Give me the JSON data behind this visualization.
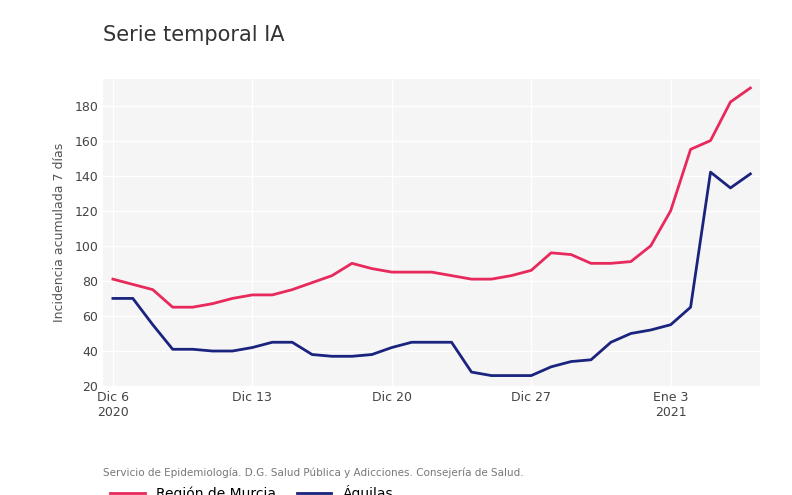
{
  "title": "Serie temporal IA",
  "ylabel": "Incidencia acumulada 7 días",
  "footnote": "Servicio de Epidemiología. D.G. Salud Pública y Adicciones. Consejería de Salud.",
  "ylim": [
    20,
    195
  ],
  "yticks": [
    20,
    40,
    60,
    80,
    100,
    120,
    140,
    160,
    180
  ],
  "xtick_labels": [
    "Dic 6\n2020",
    "Dic 13",
    "Dic 20",
    "Dic 27",
    "Ene 3\n2021"
  ],
  "xtick_positions": [
    0,
    7,
    14,
    21,
    28
  ],
  "murcia_color": "#E8295B",
  "aguilas_color": "#1A237E",
  "bg_plot": "#F5F5F5",
  "bg_outer": "#FFFFFF",
  "grid_color": "#FFFFFF",
  "legend_label_murcia": "Región de Murcia",
  "legend_label_aguilas": "Águilas",
  "title_fontsize": 15,
  "label_fontsize": 9,
  "tick_fontsize": 9,
  "legend_fontsize": 10,
  "footnote_fontsize": 7.5,
  "murcia_values": [
    81,
    78,
    75,
    65,
    65,
    67,
    70,
    72,
    72,
    75,
    79,
    83,
    90,
    87,
    85,
    85,
    85,
    83,
    81,
    81,
    83,
    86,
    96,
    95,
    90,
    90,
    91,
    100,
    120,
    155,
    160,
    182,
    190
  ],
  "aguilas_values": [
    70,
    70,
    55,
    41,
    41,
    40,
    40,
    42,
    45,
    45,
    38,
    37,
    37,
    38,
    42,
    45,
    45,
    45,
    28,
    26,
    26,
    26,
    31,
    34,
    35,
    45,
    50,
    52,
    55,
    65,
    142,
    133,
    141
  ]
}
